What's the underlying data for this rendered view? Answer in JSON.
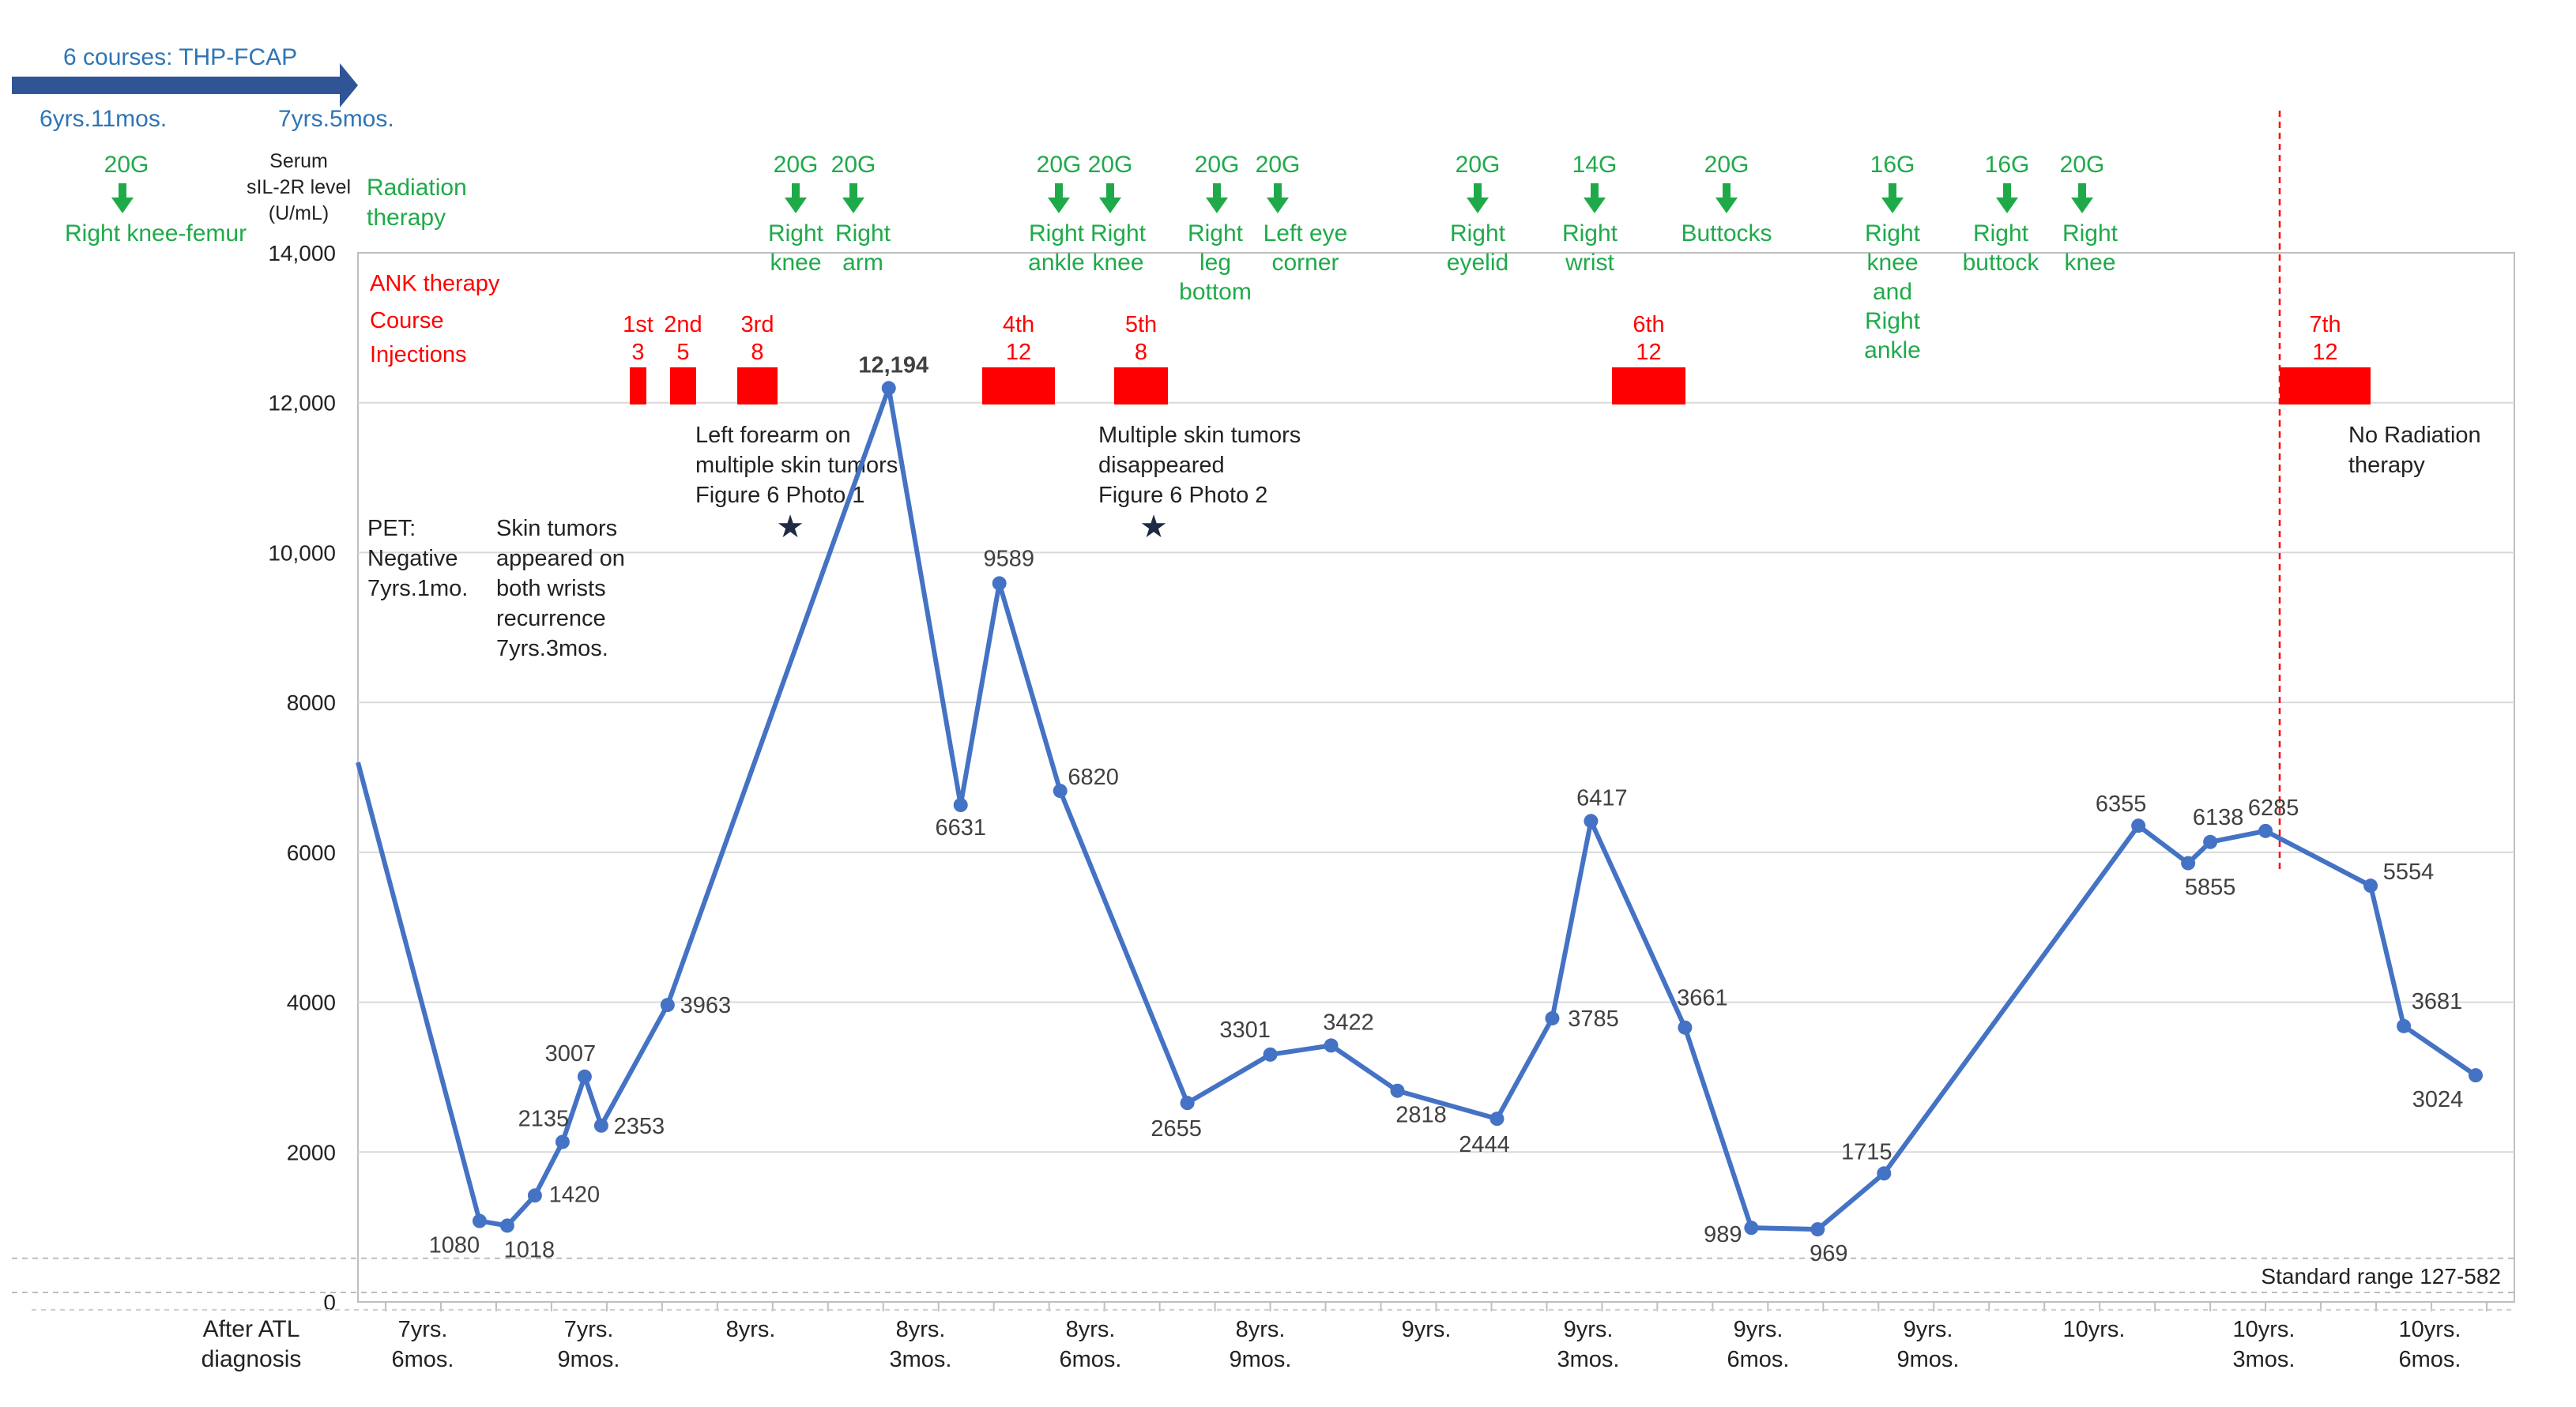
{
  "colors": {
    "line": "#4472c4",
    "radiation": "#1faa4a",
    "ank": "#ff0000",
    "text": "#222222",
    "axis": "#bfbfbf",
    "arrow": "#2f5597",
    "thp": "#2e75b6"
  },
  "thp": {
    "label": "6 courses: THP-FCAP",
    "start": "6yrs.11mos.",
    "end": "7yrs.5mos."
  },
  "labels": {
    "y_title": [
      "Serum",
      "sIL-2R level",
      "(U/mL)"
    ],
    "radiation_title": [
      "Radiation",
      "therapy"
    ],
    "ank_title": "ANK therapy",
    "course_title": "Course",
    "injections_title": "Injections",
    "x_title": [
      "After ATL",
      "diagnosis"
    ],
    "standard_range": "Standard range 127-582",
    "star_symbol": "★"
  },
  "first_radiation": {
    "dose": "20G",
    "site": "Right knee-femur"
  },
  "radiation": [
    {
      "dose": "20G",
      "site": [
        "Right",
        "knee"
      ]
    },
    {
      "dose": "20G",
      "site": [
        "Right",
        "arm"
      ]
    },
    {
      "dose": "20G",
      "site": [
        "Right",
        "ankle"
      ]
    },
    {
      "dose": "20G",
      "site": [
        "Right",
        "knee"
      ]
    },
    {
      "dose": "20G",
      "site": [
        "Right",
        "leg",
        "bottom"
      ]
    },
    {
      "dose": "20G",
      "site": [
        "Left eye",
        "corner"
      ]
    },
    {
      "dose": "20G",
      "site": [
        "Right",
        "eyelid"
      ]
    },
    {
      "dose": "14G",
      "site": [
        "Right",
        "wrist"
      ]
    },
    {
      "dose": "20G",
      "site": [
        "Buttocks"
      ]
    },
    {
      "dose": "16G",
      "site": [
        "Right",
        "knee",
        "and",
        "Right",
        "ankle"
      ]
    },
    {
      "dose": "16G",
      "site": [
        "Right",
        "buttock"
      ]
    },
    {
      "dose": "20G",
      "site": [
        "Right",
        "knee"
      ]
    }
  ],
  "courses": [
    {
      "course": "1st",
      "injections": "3"
    },
    {
      "course": "2nd",
      "injections": "5"
    },
    {
      "course": "3rd",
      "injections": "8"
    },
    {
      "course": "4th",
      "injections": "12"
    },
    {
      "course": "5th",
      "injections": "8"
    },
    {
      "course": "6th",
      "injections": "12"
    },
    {
      "course": "7th",
      "injections": "12"
    }
  ],
  "annotations": [
    {
      "text": [
        "PET:",
        "Negative",
        "7yrs.1mo."
      ]
    },
    {
      "text": [
        "Skin tumors",
        "appeared on",
        "both wrists",
        "recurrence",
        "7yrs.3mos."
      ]
    },
    {
      "text": [
        "Left forearm on",
        "multiple skin tumors",
        "Figure 6 Photo 1"
      ]
    },
    {
      "text": [
        "Multiple skin tumors",
        "disappeared",
        "Figure 6 Photo 2"
      ]
    },
    {
      "text": [
        "No Radiation",
        "therapy"
      ]
    }
  ],
  "chart_data": {
    "type": "line",
    "title": "",
    "ylabel": "Serum sIL-2R level (U/mL)",
    "xlabel": "After ATL diagnosis",
    "ylim": [
      0,
      14000
    ],
    "yticks": [
      0,
      2000,
      4000,
      6000,
      8000,
      10000,
      12000,
      14000
    ],
    "ytick_labels": [
      "0",
      "2000",
      "4000",
      "6000",
      "8000",
      "10,000",
      "12,000",
      "14,000"
    ],
    "x_range_months": [
      88.5,
      127.5
    ],
    "x_tick_labels": [
      [
        "7yrs.",
        "6mos."
      ],
      [
        "7yrs.",
        "9mos."
      ],
      [
        "8yrs."
      ],
      [
        "8yrs.",
        "3mos."
      ],
      [
        "8yrs.",
        "6mos."
      ],
      [
        "8yrs.",
        "9mos."
      ],
      [
        "9yrs."
      ],
      [
        "9yrs.",
        "3mos."
      ],
      [
        "9yrs.",
        "6mos."
      ],
      [
        "9yrs.",
        "9mos."
      ],
      [
        "10yrs."
      ],
      [
        "10yrs.",
        "3mos."
      ],
      [
        "10yrs.",
        "6mos."
      ]
    ],
    "standard_range": [
      127,
      582
    ],
    "series": [
      {
        "name": "Serum sIL-2R level",
        "start_value": 7200,
        "points": [
          {
            "month": 90.7,
            "value": 1080,
            "label": "1080"
          },
          {
            "month": 91.2,
            "value": 1018,
            "label": "1018"
          },
          {
            "month": 91.7,
            "value": 1420,
            "label": "1420"
          },
          {
            "month": 92.2,
            "value": 2135,
            "label": "2135"
          },
          {
            "month": 92.6,
            "value": 3007,
            "label": "3007"
          },
          {
            "month": 92.9,
            "value": 2353,
            "label": "2353"
          },
          {
            "month": 94.1,
            "value": 3963,
            "label": "3963"
          },
          {
            "month": 98.1,
            "value": 12194,
            "label": "12,194"
          },
          {
            "month": 99.4,
            "value": 6631,
            "label": "6631"
          },
          {
            "month": 100.1,
            "value": 9589,
            "label": "9589"
          },
          {
            "month": 101.2,
            "value": 6820,
            "label": "6820"
          },
          {
            "month": 103.5,
            "value": 2655,
            "label": "2655"
          },
          {
            "month": 105.0,
            "value": 3301,
            "label": "3301"
          },
          {
            "month": 106.1,
            "value": 3422,
            "label": "3422"
          },
          {
            "month": 107.3,
            "value": 2818,
            "label": "2818"
          },
          {
            "month": 109.1,
            "value": 2444,
            "label": "2444"
          },
          {
            "month": 110.1,
            "value": 3785,
            "label": "3785"
          },
          {
            "month": 110.8,
            "value": 6417,
            "label": "6417"
          },
          {
            "month": 112.5,
            "value": 3661,
            "label": "3661"
          },
          {
            "month": 113.7,
            "value": 989,
            "label": "989"
          },
          {
            "month": 114.9,
            "value": 969,
            "label": "969"
          },
          {
            "month": 116.1,
            "value": 1715,
            "label": "1715"
          },
          {
            "month": 120.7,
            "value": 6355,
            "label": "6355"
          },
          {
            "month": 121.6,
            "value": 5855,
            "label": "5855"
          },
          {
            "month": 122.0,
            "value": 6138,
            "label": "6138"
          },
          {
            "month": 123.0,
            "value": 6285,
            "label": "6285"
          },
          {
            "month": 124.9,
            "value": 5554,
            "label": "5554"
          },
          {
            "month": 125.5,
            "value": 3681,
            "label": "3681"
          },
          {
            "month": 126.8,
            "value": 3024,
            "label": "3024"
          }
        ]
      }
    ]
  }
}
